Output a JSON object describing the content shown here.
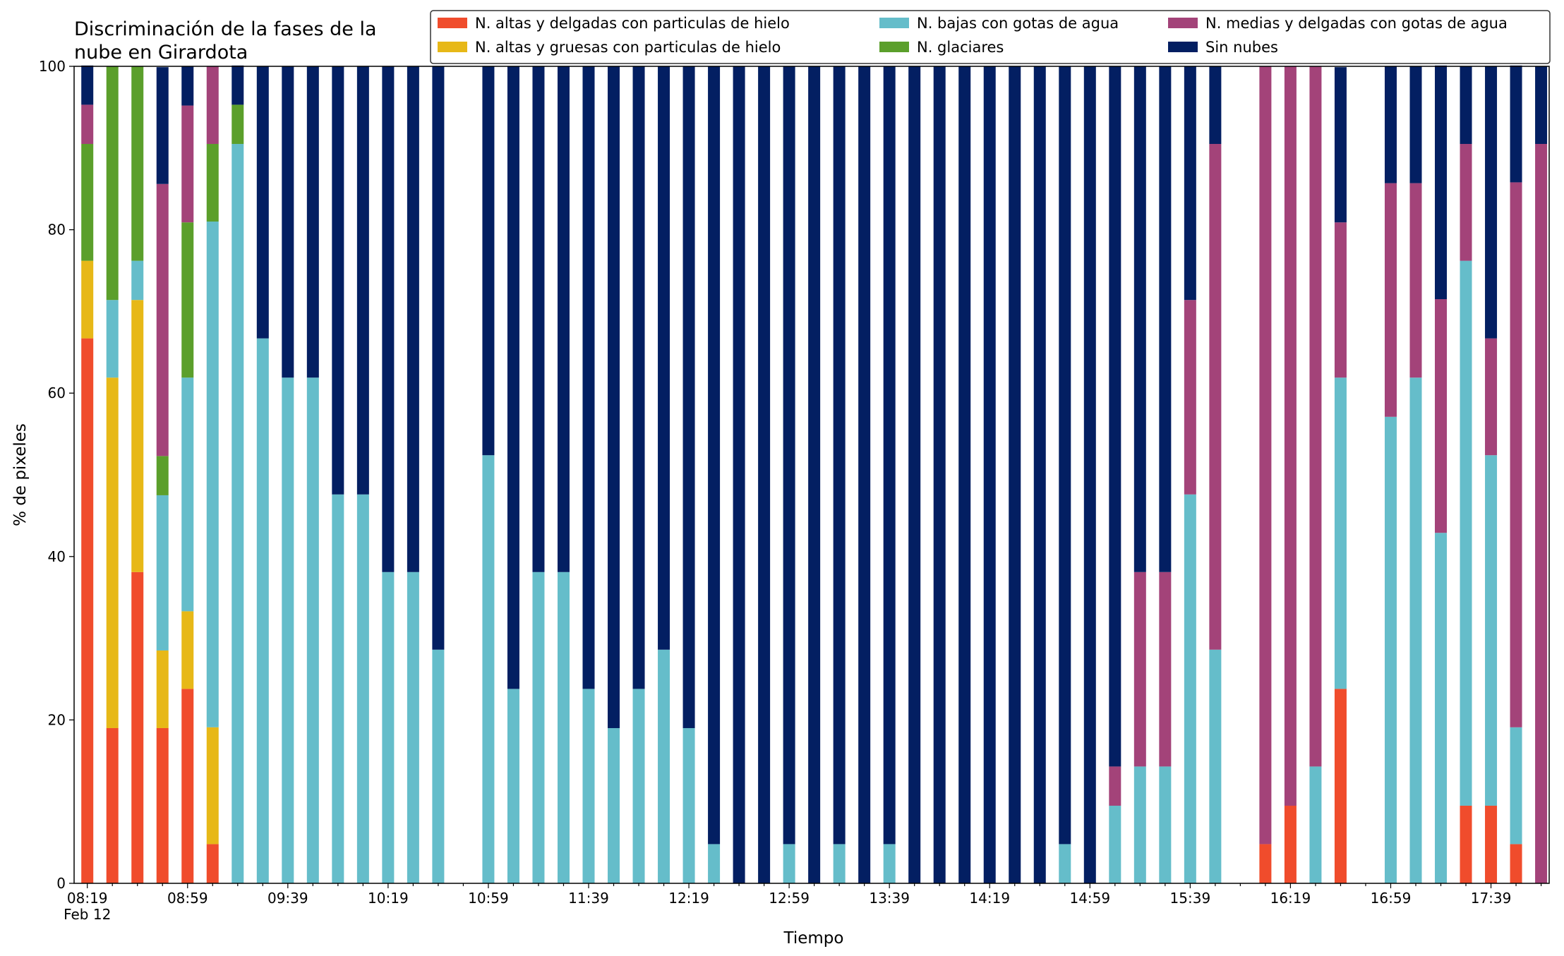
{
  "chart_data": {
    "type": "bar",
    "stacked": true,
    "title_lines": [
      "Discriminación de la fases de la",
      "nube en Girardota"
    ],
    "xlabel": "Tiempo",
    "ylabel": "% de pixeles",
    "ylim": [
      0,
      100
    ],
    "yticks": [
      "0",
      "20",
      "40",
      "60",
      "80",
      "100"
    ],
    "xticks": [
      "08:19",
      "08:59",
      "09:39",
      "10:19",
      "10:59",
      "11:39",
      "12:19",
      "12:59",
      "13:39",
      "14:19",
      "14:59",
      "15:39",
      "16:19",
      "16:59",
      "17:39"
    ],
    "xtick_date": "Feb 12",
    "grid": false,
    "legend_position": "top-right",
    "legend_columns": 3,
    "categories": [
      "08:19",
      "08:29",
      "08:39",
      "08:49",
      "08:59",
      "09:09",
      "09:19",
      "09:29",
      "09:39",
      "09:49",
      "09:59",
      "10:09",
      "10:19",
      "10:29",
      "10:39",
      "10:49",
      "10:59",
      "11:09",
      "11:19",
      "11:29",
      "11:39",
      "11:49",
      "11:59",
      "12:09",
      "12:19",
      "12:29",
      "12:39",
      "12:49",
      "12:59",
      "13:09",
      "13:19",
      "13:29",
      "13:39",
      "13:49",
      "13:59",
      "14:09",
      "14:19",
      "14:29",
      "14:39",
      "14:49",
      "14:59",
      "15:09",
      "15:19",
      "15:29",
      "15:39",
      "15:49",
      "15:59",
      "16:09",
      "16:19",
      "16:29",
      "16:39",
      "16:49",
      "16:59",
      "17:09",
      "17:19",
      "17:29",
      "17:39",
      "17:49",
      "17:59"
    ],
    "series": [
      {
        "name": "N. altas y delgadas con particulas de hielo",
        "color": "#f04c2c",
        "values": [
          66.7,
          19,
          38.1,
          19,
          23.8,
          4.8,
          0,
          0,
          0,
          0,
          0,
          0,
          0,
          0,
          0,
          0,
          0,
          0,
          0,
          0,
          0,
          0,
          0,
          0,
          0,
          0,
          0,
          0,
          0,
          0,
          0,
          0,
          0,
          0,
          0,
          0,
          0,
          0,
          0,
          0,
          0,
          0,
          0,
          0,
          0,
          0,
          0,
          4.8,
          9.5,
          0,
          23.8,
          0,
          0,
          0,
          0,
          9.5,
          9.5,
          4.8,
          0
        ]
      },
      {
        "name": "N. altas y gruesas con particulas de hielo",
        "color": "#e7b817",
        "values": [
          9.5,
          42.9,
          33.3,
          9.5,
          9.5,
          14.3,
          0,
          0,
          0,
          0,
          0,
          0,
          0,
          0,
          0,
          0,
          0,
          0,
          0,
          0,
          0,
          0,
          0,
          0,
          0,
          0,
          0,
          0,
          0,
          0,
          0,
          0,
          0,
          0,
          0,
          0,
          0,
          0,
          0,
          0,
          0,
          0,
          0,
          0,
          0,
          0,
          0,
          0,
          0,
          0,
          0,
          0,
          0,
          0,
          0,
          0,
          0,
          0,
          0
        ]
      },
      {
        "name": "N. bajas con gotas de agua",
        "color": "#65bdca",
        "values": [
          0,
          9.5,
          4.8,
          19,
          28.6,
          61.9,
          90.5,
          66.7,
          61.9,
          61.9,
          47.6,
          47.6,
          38.1,
          38.1,
          28.6,
          0,
          52.4,
          23.8,
          38.1,
          38.1,
          23.8,
          19,
          23.8,
          28.6,
          19,
          4.8,
          0,
          0,
          4.8,
          0,
          4.8,
          0,
          4.8,
          0,
          0,
          0,
          0,
          0,
          0,
          4.8,
          0,
          9.5,
          14.3,
          14.3,
          47.6,
          28.6,
          0,
          0,
          0,
          14.3,
          38.1,
          0,
          57.1,
          61.9,
          42.9,
          66.7,
          42.9,
          14.3,
          0
        ]
      },
      {
        "name": "N. glaciares",
        "color": "#5b9f2b",
        "values": [
          14.3,
          28.6,
          23.8,
          4.8,
          19,
          9.5,
          4.8,
          0,
          0,
          0,
          0,
          0,
          0,
          0,
          0,
          0,
          0,
          0,
          0,
          0,
          0,
          0,
          0,
          0,
          0,
          0,
          0,
          0,
          0,
          0,
          0,
          0,
          0,
          0,
          0,
          0,
          0,
          0,
          0,
          0,
          0,
          0,
          0,
          0,
          0,
          0,
          0,
          0,
          0,
          0,
          0,
          0,
          0,
          0,
          0,
          0,
          0,
          0,
          0
        ]
      },
      {
        "name": "N. medias y delgadas con gotas de agua",
        "color": "#a34379",
        "values": [
          4.8,
          0,
          0,
          33.3,
          14.3,
          9.5,
          0,
          0,
          0,
          0,
          0,
          0,
          0,
          0,
          0,
          0,
          0,
          0,
          0,
          0,
          0,
          0,
          0,
          0,
          0,
          0,
          0,
          0,
          0,
          0,
          0,
          0,
          0,
          0,
          0,
          0,
          0,
          0,
          0,
          0,
          0,
          4.8,
          23.8,
          23.8,
          23.8,
          61.9,
          0,
          95.2,
          90.5,
          85.7,
          19,
          0,
          28.6,
          23.8,
          28.6,
          14.3,
          14.3,
          66.7,
          90.5
        ]
      },
      {
        "name": "Sin nubes",
        "color": "#031f62",
        "values": [
          4.8,
          0,
          0,
          14.3,
          4.8,
          0,
          4.8,
          33.3,
          38.1,
          38.1,
          52.4,
          52.4,
          61.9,
          61.9,
          71.4,
          0,
          47.6,
          76.2,
          61.9,
          61.9,
          76.2,
          81,
          76.2,
          71.4,
          81,
          95.2,
          100,
          100,
          95.2,
          100,
          95.2,
          100,
          95.2,
          100,
          100,
          100,
          100,
          100,
          100,
          95.2,
          100,
          85.7,
          61.9,
          61.9,
          28.6,
          9.5,
          0,
          0,
          0,
          0,
          19,
          0,
          14.3,
          14.3,
          28.6,
          9.5,
          33.3,
          14.3,
          9.5
        ]
      }
    ]
  }
}
